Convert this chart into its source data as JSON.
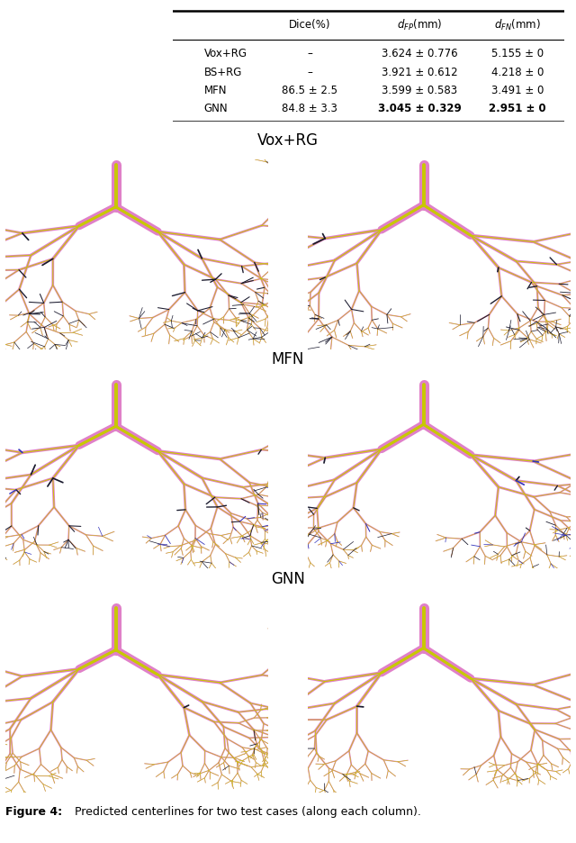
{
  "table_header": [
    "",
    "Dice(%)",
    "d_FP(mm)",
    "d_FN(mm)"
  ],
  "table_rows": [
    [
      "Vox+RG",
      "–",
      "3.624 ± 0.776",
      "5.155 ± 0"
    ],
    [
      "BS+RG",
      "–",
      "3.921 ± 0.612",
      "4.218 ± 0"
    ],
    [
      "MFN",
      "86.5 ± 2.5",
      "3.599 ± 0.583",
      "3.491 ± 0"
    ],
    [
      "GNN",
      "84.8 ± 3.3",
      "3.045 ± 0.329",
      "2.951 ± 0"
    ]
  ],
  "section_labels": [
    "Vox+RG",
    "MFN",
    "GNN"
  ],
  "caption_bold": "Figure 4:",
  "caption_rest": " Predicted centerlines for two test cases (along each column).",
  "pink": "#e080c8",
  "yellow": "#c8c800",
  "dark": "#1a1a2e",
  "blue": "#3333bb",
  "bg": "#ffffff"
}
